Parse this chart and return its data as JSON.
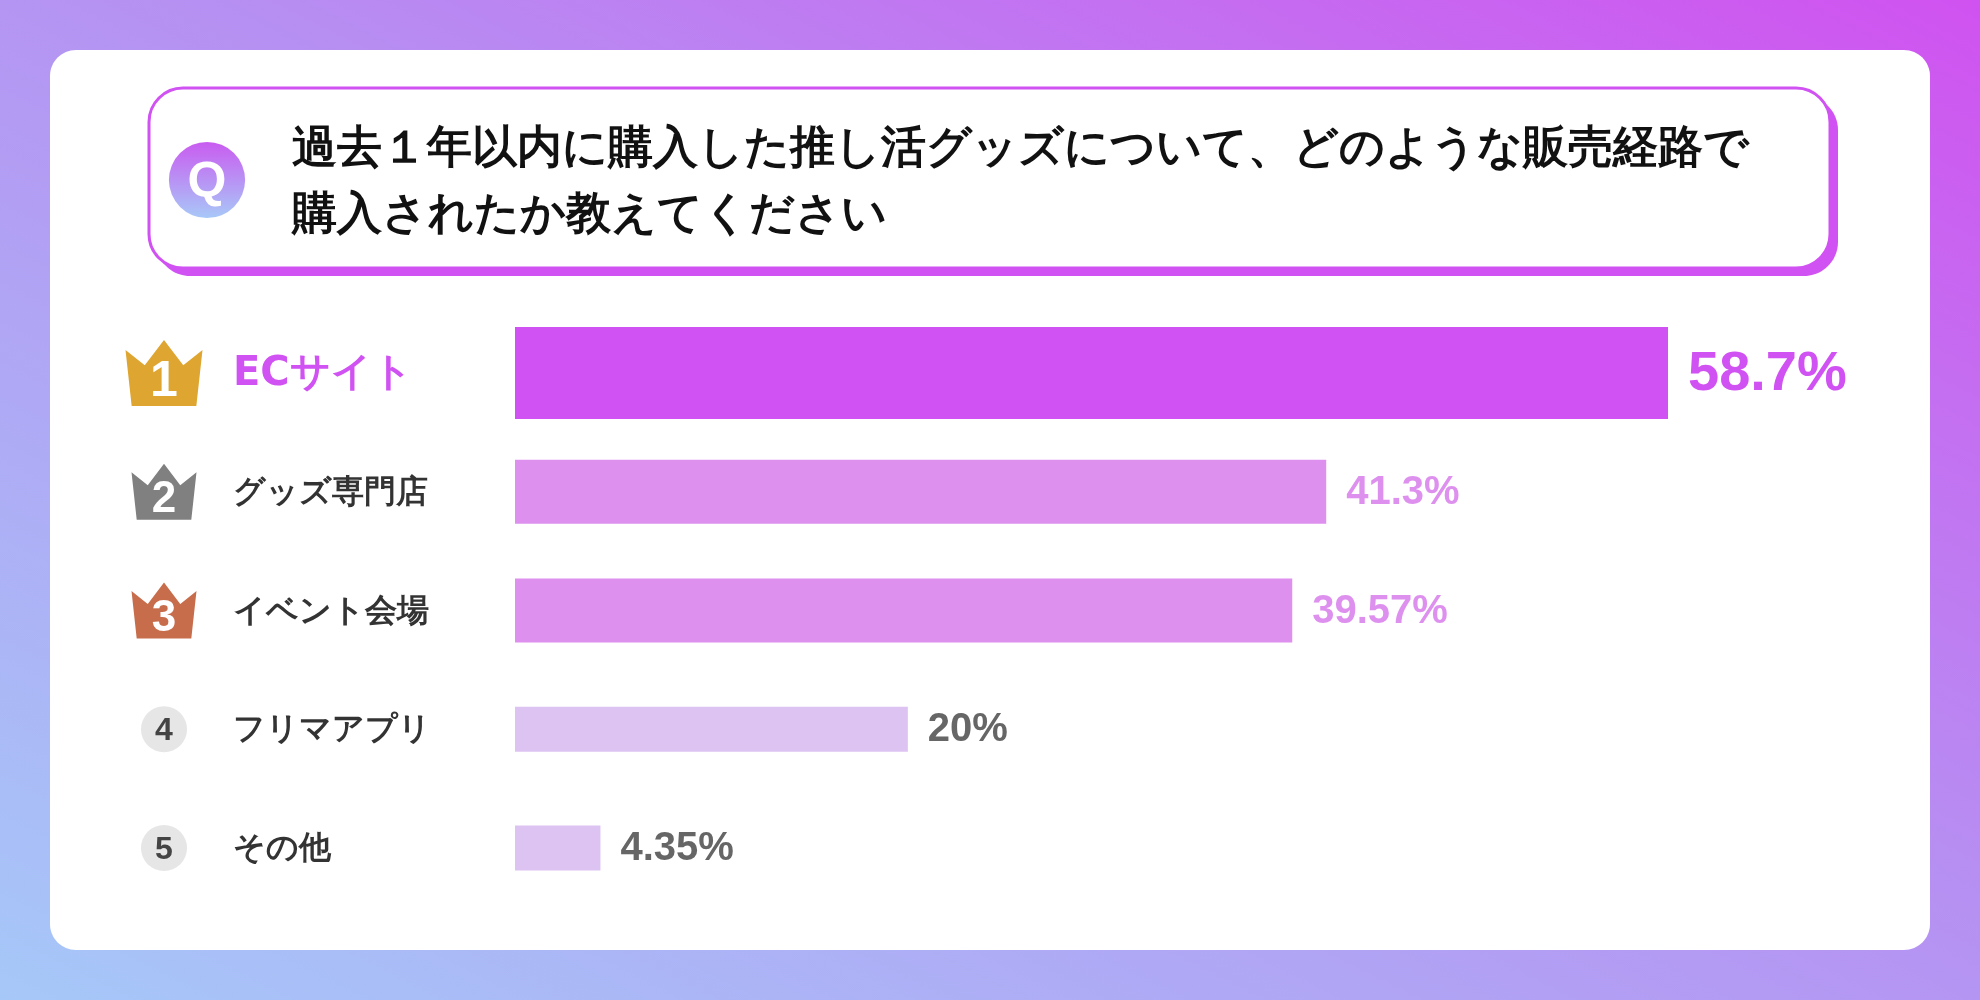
{
  "chart_data": {
    "type": "bar",
    "orientation": "horizontal",
    "title": "過去１年以内に購入した推し活グッズについて、どのような販売経路で購入されたか教えてください",
    "categories": [
      "ECサイト",
      "グッズ専門店",
      "イベント会場",
      "フリマアプリ",
      "その他"
    ],
    "values": [
      58.7,
      41.3,
      39.57,
      20,
      4.35
    ],
    "colors": [
      "#d152f2",
      "#de90ef",
      "#de90ef",
      "#dcc3f1",
      "#dcc3f1"
    ],
    "value_labels": [
      "58.7%",
      "41.3%",
      "39.57%",
      "20%",
      "4.35%"
    ],
    "annotations": [
      "Q",
      "1",
      "2",
      "3",
      "4",
      "5"
    ]
  }
}
